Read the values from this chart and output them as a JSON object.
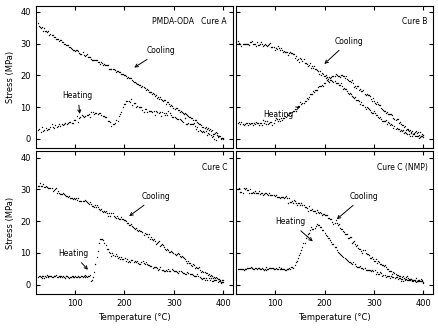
{
  "title_a": "PMDA-ODA   Cure A",
  "title_b": "Cure B",
  "title_c": "Cure C",
  "title_d": "Cure C (NMP)",
  "xlabel": "Temperature (°C)",
  "ylabel": "Stress (MPa)",
  "xlim": [
    20,
    420
  ],
  "ylim": [
    -3,
    42
  ],
  "yticks": [
    0,
    10,
    20,
    30,
    40
  ],
  "xticks": [
    100,
    200,
    300,
    400
  ]
}
